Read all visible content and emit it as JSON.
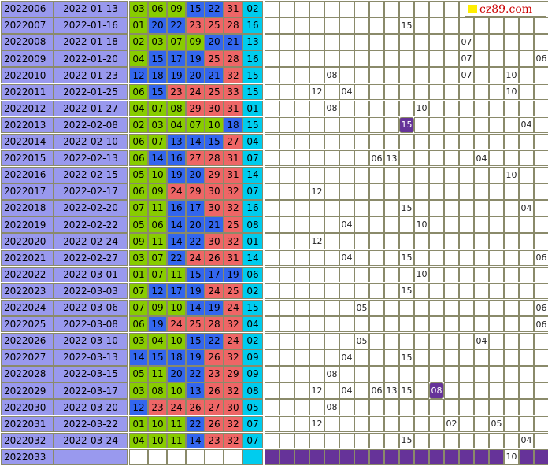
{
  "logo": {
    "text": "cz89.com",
    "square_color": "#ffee00"
  },
  "colors": {
    "green": "#88cc00",
    "blue": "#3366ee",
    "red": "#ee6666",
    "blue_ball": "#00ccee",
    "issue_bg": "#9999ee",
    "highlight": "#663399"
  },
  "chart_data": {
    "type": "table",
    "columns": [
      "issue",
      "date",
      "red_balls",
      "blue_ball",
      "blue_ball_omission_grid_1_to_16"
    ],
    "rows": [
      {
        "issue": "2022006",
        "date": "2022-01-13",
        "reds": [
          "03",
          "06",
          "09",
          "15",
          "22",
          "31"
        ],
        "blue": "02",
        "misses": []
      },
      {
        "issue": "2022007",
        "date": "2022-01-16",
        "reds": [
          "01",
          "20",
          "22",
          "23",
          "25",
          "28"
        ],
        "blue": "16",
        "misses": [
          {
            "col": 9,
            "text": "15"
          }
        ]
      },
      {
        "issue": "2022008",
        "date": "2022-01-18",
        "reds": [
          "02",
          "03",
          "07",
          "09",
          "20",
          "21"
        ],
        "blue": "13",
        "misses": [
          {
            "col": 13,
            "text": "07"
          }
        ]
      },
      {
        "issue": "2022009",
        "date": "2022-01-20",
        "reds": [
          "04",
          "15",
          "17",
          "19",
          "25",
          "28"
        ],
        "blue": "16",
        "misses": [
          {
            "col": 13,
            "text": "07"
          },
          {
            "col": 18,
            "text": "06"
          }
        ]
      },
      {
        "issue": "2022010",
        "date": "2022-01-23",
        "reds": [
          "12",
          "18",
          "19",
          "20",
          "21",
          "32"
        ],
        "blue": "15",
        "misses": [
          {
            "col": 4,
            "text": "08"
          },
          {
            "col": 13,
            "text": "07"
          },
          {
            "col": 16,
            "text": "10"
          }
        ]
      },
      {
        "issue": "2022011",
        "date": "2022-01-25",
        "reds": [
          "06",
          "15",
          "23",
          "24",
          "25",
          "33"
        ],
        "blue": "15",
        "misses": [
          {
            "col": 3,
            "text": "12"
          },
          {
            "col": 5,
            "text": "04"
          },
          {
            "col": 16,
            "text": "10"
          }
        ]
      },
      {
        "issue": "2022012",
        "date": "2022-01-27",
        "reds": [
          "04",
          "07",
          "08",
          "29",
          "30",
          "31"
        ],
        "blue": "01",
        "misses": [
          {
            "col": 4,
            "text": "08"
          },
          {
            "col": 10,
            "text": "10"
          }
        ]
      },
      {
        "issue": "2022013",
        "date": "2022-02-08",
        "reds": [
          "02",
          "03",
          "04",
          "07",
          "10",
          "18"
        ],
        "blue": "15",
        "misses": [
          {
            "col": 9,
            "text": "15",
            "hl": true
          },
          {
            "col": 17,
            "text": "04"
          }
        ]
      },
      {
        "issue": "2022014",
        "date": "2022-02-10",
        "reds": [
          "06",
          "07",
          "13",
          "14",
          "15",
          "27"
        ],
        "blue": "04",
        "misses": []
      },
      {
        "issue": "2022015",
        "date": "2022-02-13",
        "reds": [
          "06",
          "14",
          "16",
          "27",
          "28",
          "31"
        ],
        "blue": "07",
        "misses": [
          {
            "col": 7,
            "text": "06"
          },
          {
            "col": 8,
            "text": "13"
          },
          {
            "col": 14,
            "text": "04"
          }
        ]
      },
      {
        "issue": "2022016",
        "date": "2022-02-15",
        "reds": [
          "05",
          "10",
          "19",
          "20",
          "29",
          "31"
        ],
        "blue": "14",
        "misses": [
          {
            "col": 16,
            "text": "10"
          }
        ]
      },
      {
        "issue": "2022017",
        "date": "2022-02-17",
        "reds": [
          "06",
          "09",
          "24",
          "29",
          "30",
          "32"
        ],
        "blue": "07",
        "misses": [
          {
            "col": 3,
            "text": "12"
          }
        ]
      },
      {
        "issue": "2022018",
        "date": "2022-02-20",
        "reds": [
          "07",
          "11",
          "16",
          "17",
          "30",
          "32"
        ],
        "blue": "16",
        "misses": [
          {
            "col": 9,
            "text": "15"
          },
          {
            "col": 17,
            "text": "04"
          }
        ]
      },
      {
        "issue": "2022019",
        "date": "2022-02-22",
        "reds": [
          "05",
          "06",
          "14",
          "20",
          "21",
          "25"
        ],
        "blue": "08",
        "misses": [
          {
            "col": 5,
            "text": "04"
          },
          {
            "col": 10,
            "text": "10"
          }
        ]
      },
      {
        "issue": "2022020",
        "date": "2022-02-24",
        "reds": [
          "09",
          "11",
          "14",
          "22",
          "30",
          "32"
        ],
        "blue": "01",
        "misses": [
          {
            "col": 3,
            "text": "12"
          }
        ]
      },
      {
        "issue": "2022021",
        "date": "2022-02-27",
        "reds": [
          "03",
          "07",
          "22",
          "24",
          "26",
          "31"
        ],
        "blue": "14",
        "misses": [
          {
            "col": 5,
            "text": "04"
          },
          {
            "col": 9,
            "text": "15"
          },
          {
            "col": 18,
            "text": "06"
          }
        ]
      },
      {
        "issue": "2022022",
        "date": "2022-03-01",
        "reds": [
          "01",
          "07",
          "11",
          "15",
          "17",
          "19"
        ],
        "blue": "06",
        "misses": [
          {
            "col": 10,
            "text": "10"
          }
        ]
      },
      {
        "issue": "2022023",
        "date": "2022-03-03",
        "reds": [
          "07",
          "12",
          "17",
          "19",
          "24",
          "25"
        ],
        "blue": "02",
        "misses": [
          {
            "col": 9,
            "text": "15"
          }
        ]
      },
      {
        "issue": "2022024",
        "date": "2022-03-06",
        "reds": [
          "07",
          "09",
          "10",
          "14",
          "19",
          "24"
        ],
        "blue": "15",
        "misses": [
          {
            "col": 6,
            "text": "05"
          },
          {
            "col": 18,
            "text": "06"
          }
        ]
      },
      {
        "issue": "2022025",
        "date": "2022-03-08",
        "reds": [
          "06",
          "19",
          "24",
          "25",
          "28",
          "32"
        ],
        "blue": "04",
        "misses": [
          {
            "col": 18,
            "text": "06"
          }
        ]
      },
      {
        "issue": "2022026",
        "date": "2022-03-10",
        "reds": [
          "03",
          "04",
          "10",
          "15",
          "22",
          "24"
        ],
        "blue": "02",
        "misses": [
          {
            "col": 6,
            "text": "05"
          },
          {
            "col": 14,
            "text": "04"
          }
        ]
      },
      {
        "issue": "2022027",
        "date": "2022-03-13",
        "reds": [
          "14",
          "15",
          "18",
          "19",
          "26",
          "32"
        ],
        "blue": "09",
        "misses": [
          {
            "col": 5,
            "text": "04"
          },
          {
            "col": 9,
            "text": "15"
          }
        ]
      },
      {
        "issue": "2022028",
        "date": "2022-03-15",
        "reds": [
          "05",
          "11",
          "20",
          "22",
          "23",
          "29"
        ],
        "blue": "09",
        "misses": [
          {
            "col": 4,
            "text": "08"
          }
        ]
      },
      {
        "issue": "2022029",
        "date": "2022-03-17",
        "reds": [
          "03",
          "08",
          "10",
          "13",
          "26",
          "32"
        ],
        "blue": "08",
        "misses": [
          {
            "col": 3,
            "text": "12"
          },
          {
            "col": 5,
            "text": "04"
          },
          {
            "col": 7,
            "text": "06"
          },
          {
            "col": 8,
            "text": "13"
          },
          {
            "col": 9,
            "text": "15"
          },
          {
            "col": 11,
            "text": "08",
            "hl": true
          }
        ]
      },
      {
        "issue": "2022030",
        "date": "2022-03-20",
        "reds": [
          "12",
          "23",
          "24",
          "26",
          "27",
          "30"
        ],
        "blue": "05",
        "misses": [
          {
            "col": 4,
            "text": "08"
          }
        ]
      },
      {
        "issue": "2022031",
        "date": "2022-03-22",
        "reds": [
          "01",
          "10",
          "11",
          "22",
          "26",
          "32"
        ],
        "blue": "07",
        "misses": [
          {
            "col": 3,
            "text": "12"
          },
          {
            "col": 12,
            "text": "02"
          },
          {
            "col": 15,
            "text": "05"
          }
        ]
      },
      {
        "issue": "2022032",
        "date": "2022-03-24",
        "reds": [
          "04",
          "10",
          "11",
          "14",
          "23",
          "32"
        ],
        "blue": "07",
        "misses": [
          {
            "col": 9,
            "text": "15"
          },
          {
            "col": 17,
            "text": "04"
          }
        ]
      },
      {
        "issue": "2022033",
        "date": "",
        "reds": [
          "",
          "",
          "",
          "",
          "",
          ""
        ],
        "blue": "",
        "pending": true,
        "misses": [
          {
            "col": 16,
            "text": "10"
          }
        ]
      }
    ]
  }
}
